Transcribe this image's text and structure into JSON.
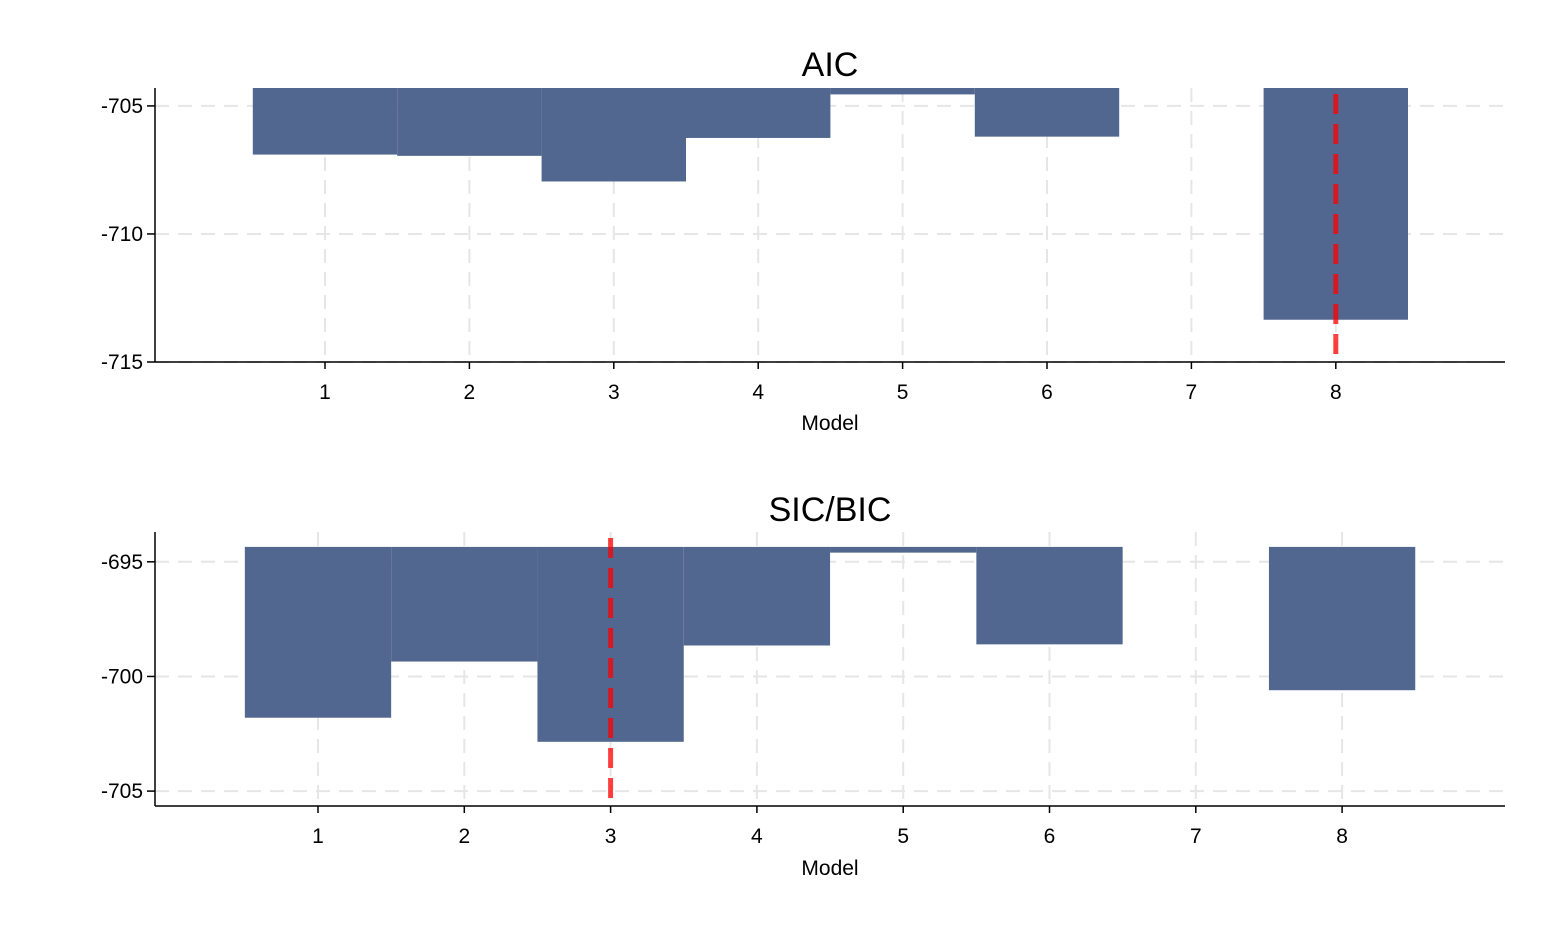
{
  "colors": {
    "bar": "#526790",
    "marker": "#ff0000",
    "grid": "#e6e6e6",
    "axis": "#000000",
    "background": "#ffffff"
  },
  "chart_data": [
    {
      "type": "bar",
      "title": "AIC",
      "xlabel": "Model",
      "ylabel": "",
      "categories": [
        1,
        2,
        3,
        4,
        5,
        6,
        7,
        8
      ],
      "values": [
        -706.9,
        -706.95,
        -707.95,
        -706.25,
        -704.55,
        -706.2,
        null,
        -713.35
      ],
      "baseline": -704.3,
      "ylim": [
        -715,
        -704.3
      ],
      "yticks": [
        -705,
        -710,
        -715
      ],
      "xticks": [
        1,
        2,
        3,
        4,
        5,
        6,
        7,
        8
      ],
      "selected_model": 8,
      "grid": true,
      "legend": "none"
    },
    {
      "type": "bar",
      "title": "SIC/BIC",
      "xlabel": "Model",
      "ylabel": "",
      "categories": [
        1,
        2,
        3,
        4,
        5,
        6,
        7,
        8
      ],
      "values": [
        -701.8,
        -699.35,
        -702.85,
        -698.65,
        -694.6,
        -698.6,
        null,
        -700.6
      ],
      "baseline": -694.35,
      "ylim": [
        -705.65,
        -693.7
      ],
      "yticks": [
        -695,
        -700,
        -705
      ],
      "xticks": [
        1,
        2,
        3,
        4,
        5,
        6,
        7,
        8
      ],
      "selected_model": 3,
      "grid": true,
      "legend": "none"
    }
  ]
}
